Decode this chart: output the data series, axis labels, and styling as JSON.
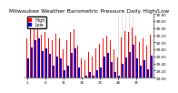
{
  "title": "Milwaukee Weather Barometric Pressure Daily High/Low",
  "ylim": [
    29.0,
    30.8
  ],
  "ybase": 29.0,
  "yticks": [
    29.0,
    29.2,
    29.4,
    29.6,
    29.8,
    30.0,
    30.2,
    30.4,
    30.6,
    30.8
  ],
  "bar_width": 0.4,
  "background_color": "#ffffff",
  "high_color": "#ff0000",
  "low_color": "#0000cc",
  "highs": [
    30.12,
    30.55,
    30.48,
    30.38,
    30.22,
    30.3,
    30.1,
    30.05,
    30.25,
    30.12,
    29.8,
    30.05,
    30.28,
    30.38,
    29.9,
    29.55,
    29.5,
    29.72,
    29.6,
    29.82,
    29.95,
    30.1,
    30.2,
    30.05,
    29.8,
    29.58,
    30.15,
    30.32,
    30.28,
    30.42,
    30.18,
    30.0,
    30.1,
    29.9,
    30.22
  ],
  "lows": [
    29.55,
    29.85,
    30.05,
    30.1,
    29.75,
    29.82,
    29.68,
    29.35,
    29.6,
    29.55,
    29.2,
    29.35,
    29.7,
    29.82,
    29.3,
    29.0,
    29.05,
    29.15,
    29.05,
    29.2,
    29.3,
    29.6,
    29.7,
    29.45,
    29.15,
    29.05,
    29.4,
    29.58,
    29.72,
    29.92,
    29.55,
    29.35,
    29.5,
    29.25,
    29.62
  ],
  "dashed_cols": [
    25,
    26,
    27,
    28,
    29
  ],
  "title_fontsize": 4.5,
  "tick_fontsize": 3.0,
  "legend_fontsize": 3.5
}
